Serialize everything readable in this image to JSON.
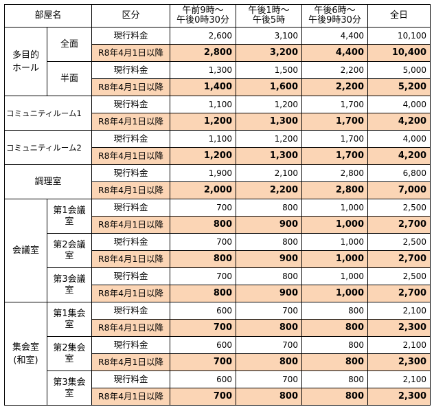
{
  "header": {
    "room_label": "部屋名",
    "category_label": "区分",
    "morning_line1": "午前9時～",
    "morning_line2": "午後0時30分",
    "afternoon_line1": "午後1時～",
    "afternoon_line2": "午後5時",
    "evening_line1": "午後6時～",
    "evening_line2": "午後9時30分",
    "allday_label": "全日"
  },
  "labels": {
    "current": "現行料金",
    "new": "R8年4月1日以降"
  },
  "colors": {
    "new_row_bg": "#fbd5b5",
    "border": "#000000"
  },
  "rooms": {
    "tamokuteki": {
      "name_line1": "多目的",
      "name_line2": "ホール",
      "full": {
        "name": "全面",
        "current": [
          "2,600",
          "3,100",
          "4,400",
          "10,100"
        ],
        "new": [
          "2,800",
          "3,200",
          "4,400",
          "10,400"
        ]
      },
      "half": {
        "name": "半面",
        "current": [
          "1,300",
          "1,500",
          "2,200",
          "5,000"
        ],
        "new": [
          "1,400",
          "1,600",
          "2,200",
          "5,200"
        ]
      }
    },
    "community1": {
      "name": "コミュニティルーム1",
      "current": [
        "1,100",
        "1,200",
        "1,700",
        "4,000"
      ],
      "new": [
        "1,200",
        "1,300",
        "1,700",
        "4,200"
      ]
    },
    "community2": {
      "name": "コミュニティルーム2",
      "current": [
        "1,100",
        "1,200",
        "1,700",
        "4,000"
      ],
      "new": [
        "1,200",
        "1,300",
        "1,700",
        "4,200"
      ]
    },
    "cooking": {
      "name": "調理室",
      "current": [
        "1,900",
        "2,100",
        "2,800",
        "6,800"
      ],
      "new": [
        "2,000",
        "2,200",
        "2,800",
        "7,000"
      ]
    },
    "kaigishitsu": {
      "name": "会議室",
      "rooms": [
        {
          "name_line1": "第1会議",
          "name_line2": "室",
          "current": [
            "700",
            "800",
            "1,000",
            "2,500"
          ],
          "new": [
            "800",
            "900",
            "1,000",
            "2,700"
          ]
        },
        {
          "name_line1": "第2会議",
          "name_line2": "室",
          "current": [
            "700",
            "800",
            "1,000",
            "2,500"
          ],
          "new": [
            "800",
            "900",
            "1,000",
            "2,700"
          ]
        },
        {
          "name_line1": "第3会議",
          "name_line2": "室",
          "current": [
            "700",
            "800",
            "1,000",
            "2,500"
          ],
          "new": [
            "800",
            "900",
            "1,000",
            "2,700"
          ]
        }
      ]
    },
    "shukaishitsu": {
      "name_line1": "集会室",
      "name_line2": "(和室)",
      "rooms": [
        {
          "name_line1": "第1集会",
          "name_line2": "室",
          "current": [
            "600",
            "700",
            "800",
            "2,100"
          ],
          "new": [
            "700",
            "800",
            "800",
            "2,300"
          ]
        },
        {
          "name_line1": "第2集会",
          "name_line2": "室",
          "current": [
            "600",
            "700",
            "800",
            "2,100"
          ],
          "new": [
            "700",
            "800",
            "800",
            "2,300"
          ]
        },
        {
          "name_line1": "第3集会",
          "name_line2": "室",
          "current": [
            "600",
            "700",
            "800",
            "2,100"
          ],
          "new": [
            "700",
            "800",
            "800",
            "2,300"
          ]
        }
      ]
    }
  }
}
